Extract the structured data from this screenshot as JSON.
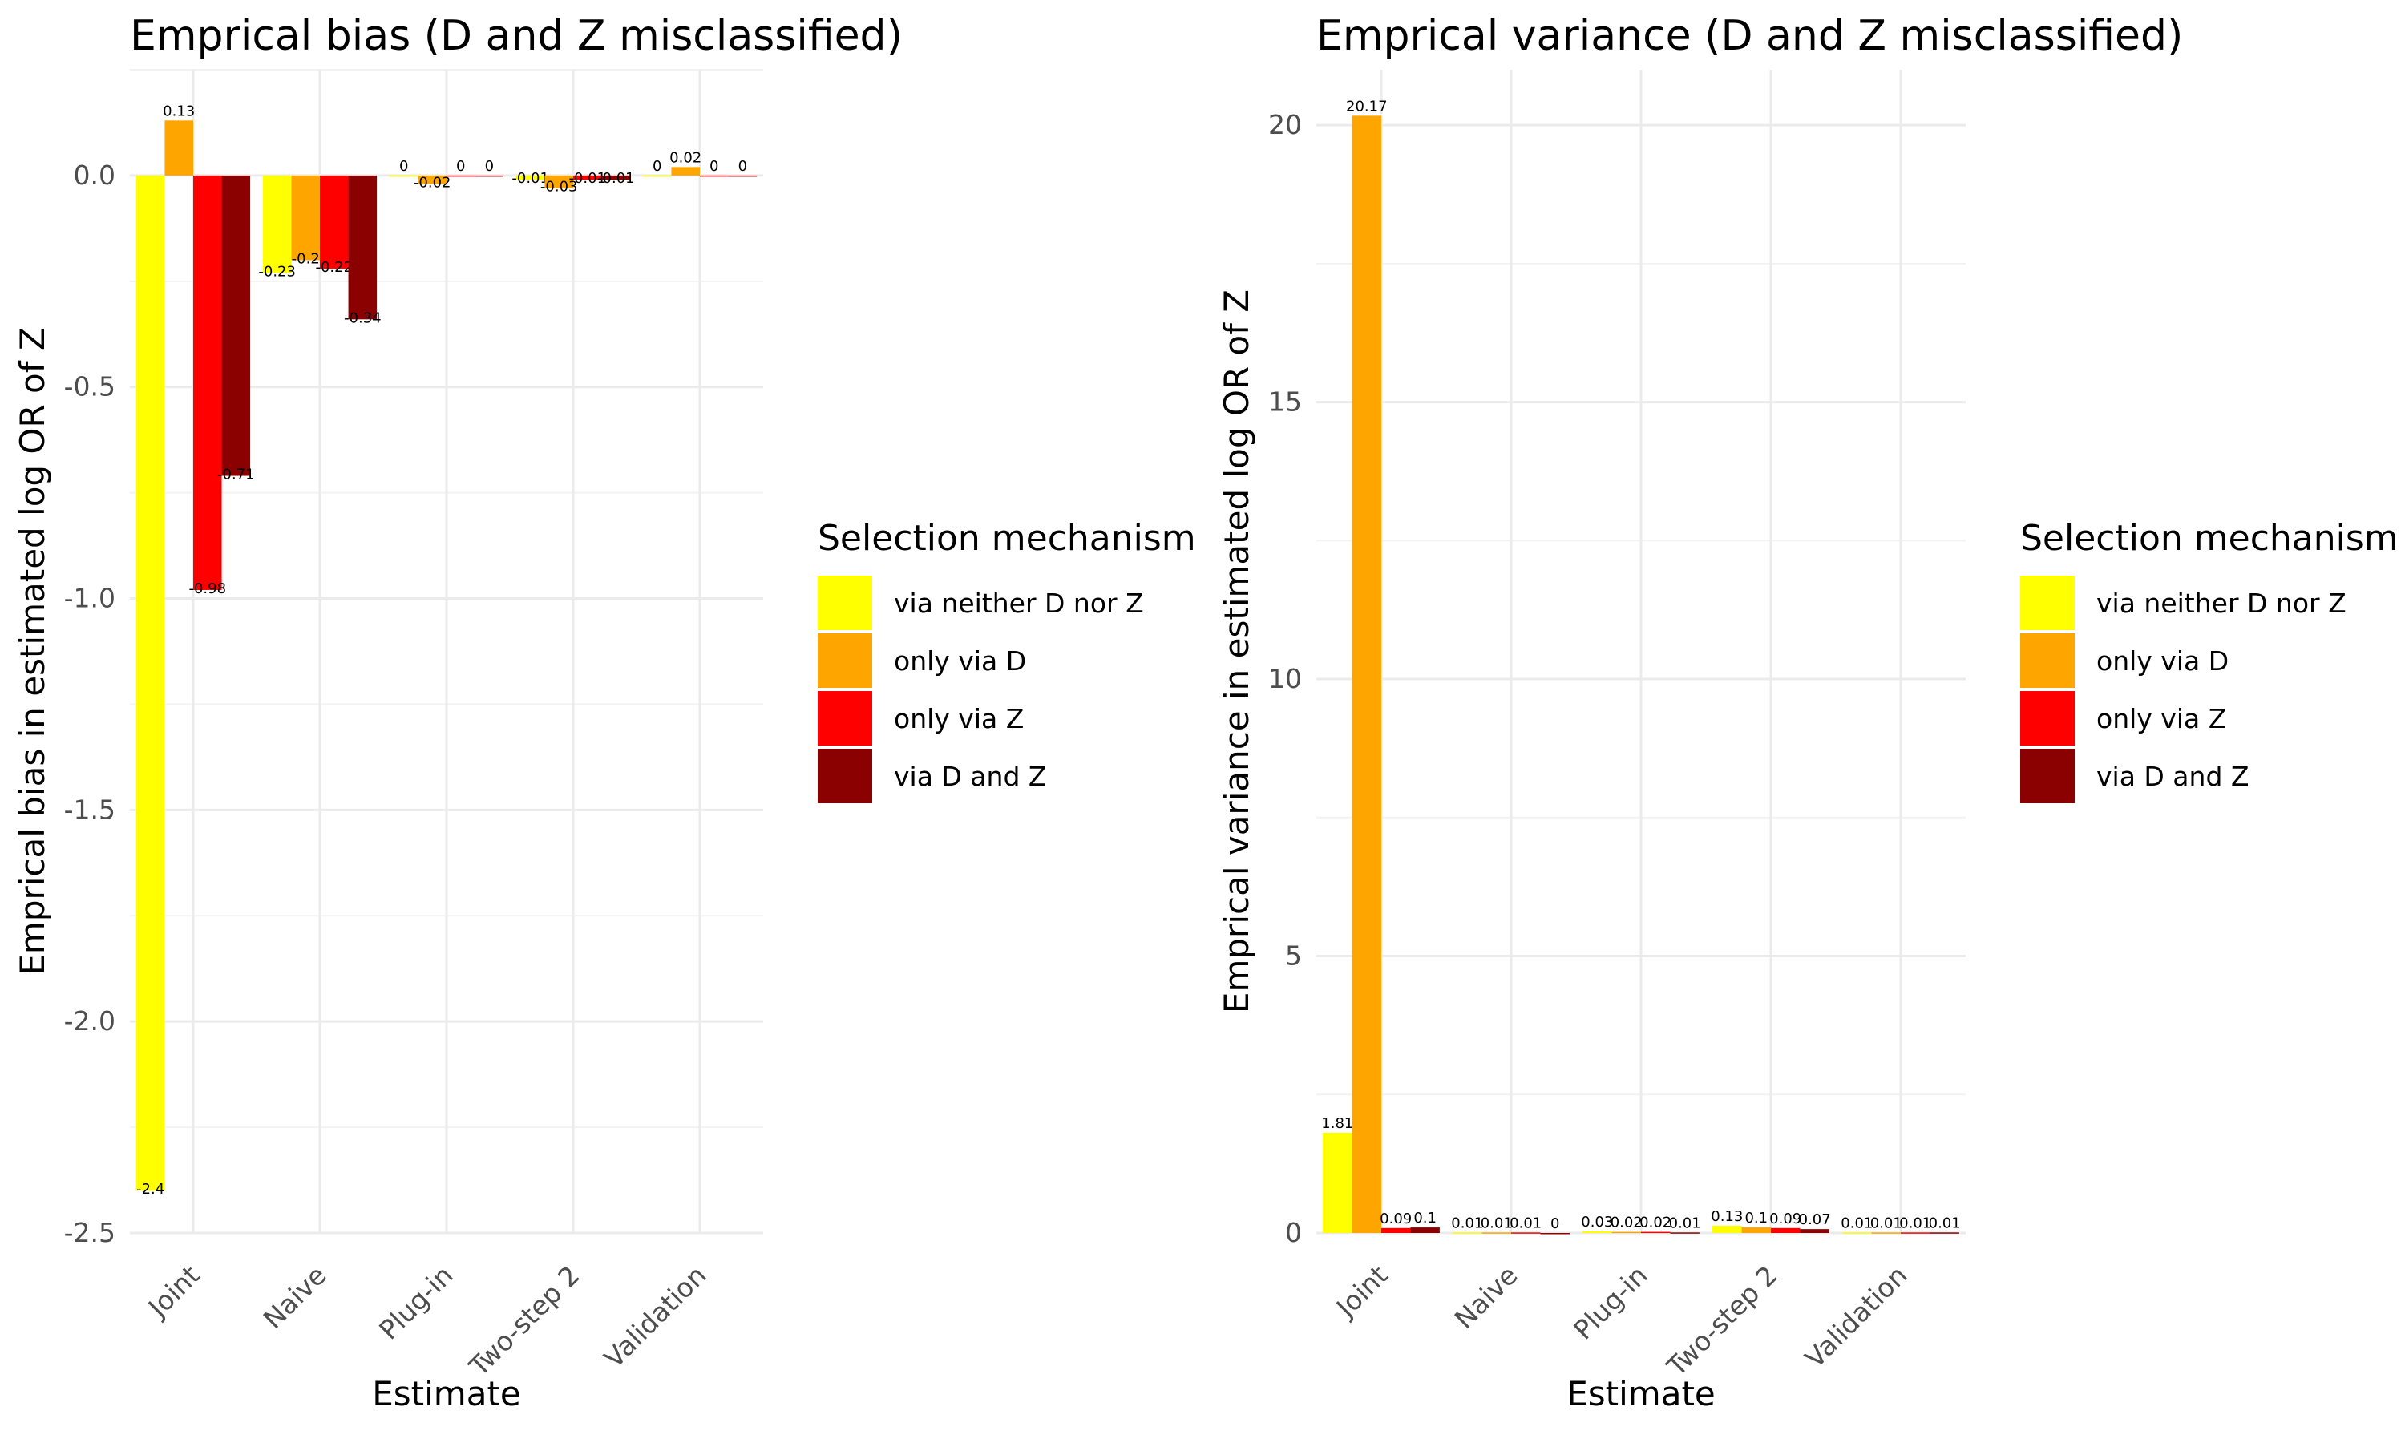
{
  "chart_data": [
    {
      "type": "bar",
      "title": "Emprical bias (D and Z misclassified)",
      "xlabel": "Estimate",
      "ylabel": "Emprical bias in estimated log OR of Z",
      "categories": [
        "Joint",
        "Naive",
        "Plug-in",
        "Two-step 2",
        "Validation"
      ],
      "ylim": [
        -2.5,
        0.25
      ],
      "yticks": [
        0.0,
        -0.5,
        -1.0,
        -1.5,
        -2.0,
        -2.5
      ],
      "ytick_labels": [
        "0.0",
        "-0.5",
        "-1.0",
        "-1.5",
        "-2.0",
        "-2.5"
      ],
      "grid": true,
      "legend": {
        "title": "Selection mechanism",
        "position": "right",
        "entries": [
          "via neither D nor Z",
          "only via D",
          "only via Z",
          "via D and Z"
        ]
      },
      "series": [
        {
          "name": "via neither D nor Z",
          "color": "#FFFF00",
          "values": [
            -2.4,
            -0.23,
            0,
            -0.01,
            0
          ],
          "labels": [
            "-2.4",
            "-0.23",
            "0",
            "-0.01",
            "0"
          ]
        },
        {
          "name": "only via D",
          "color": "#FFA500",
          "values": [
            0.13,
            -0.2,
            -0.02,
            -0.03,
            0.02
          ],
          "labels": [
            "0.13",
            "-0.2",
            "-0.02",
            "-0.03",
            "0.02"
          ]
        },
        {
          "name": "only via Z",
          "color": "#FF0000",
          "values": [
            -0.98,
            -0.22,
            0,
            -0.01,
            0
          ],
          "labels": [
            "-0.98",
            "-0.22",
            "0",
            "-0.01",
            "0"
          ]
        },
        {
          "name": "via D and Z",
          "color": "#8B0000",
          "values": [
            -0.71,
            -0.34,
            0,
            -0.01,
            0
          ],
          "labels": [
            "-0.71",
            "-0.34",
            "0",
            "-0.01",
            "0"
          ]
        }
      ]
    },
    {
      "type": "bar",
      "title": "Emprical variance (D and Z misclassified)",
      "xlabel": "Estimate",
      "ylabel": "Emprical variance in estimated log OR of Z",
      "categories": [
        "Joint",
        "Naive",
        "Plug-in",
        "Two-step 2",
        "Validation"
      ],
      "ylim": [
        0,
        21.0
      ],
      "yticks": [
        0,
        5,
        10,
        15,
        20
      ],
      "ytick_labels": [
        "0",
        "5",
        "10",
        "15",
        "20"
      ],
      "grid": true,
      "legend": {
        "title": "Selection mechanism",
        "position": "right",
        "entries": [
          "via neither D nor Z",
          "only via D",
          "only via Z",
          "via D and Z"
        ]
      },
      "series": [
        {
          "name": "via neither D nor Z",
          "color": "#FFFF00",
          "values": [
            1.81,
            0.01,
            0.03,
            0.13,
            0.01
          ],
          "labels": [
            "1.81",
            "0.01",
            "0.03",
            "0.13",
            "0.01"
          ]
        },
        {
          "name": "only via D",
          "color": "#FFA500",
          "values": [
            20.17,
            0.01,
            0.02,
            0.1,
            0.01
          ],
          "labels": [
            "20.17",
            "0.01",
            "0.02",
            "0.1",
            "0.01"
          ]
        },
        {
          "name": "only via Z",
          "color": "#FF0000",
          "values": [
            0.09,
            0.01,
            0.02,
            0.09,
            0.01
          ],
          "labels": [
            "0.09",
            "0.01",
            "0.02",
            "0.09",
            "0.01"
          ]
        },
        {
          "name": "via D and Z",
          "color": "#8B0000",
          "values": [
            0.1,
            0,
            0.01,
            0.07,
            0.01
          ],
          "labels": [
            "0.1",
            "0",
            "0.01",
            "0.07",
            "0.01"
          ]
        }
      ]
    }
  ]
}
